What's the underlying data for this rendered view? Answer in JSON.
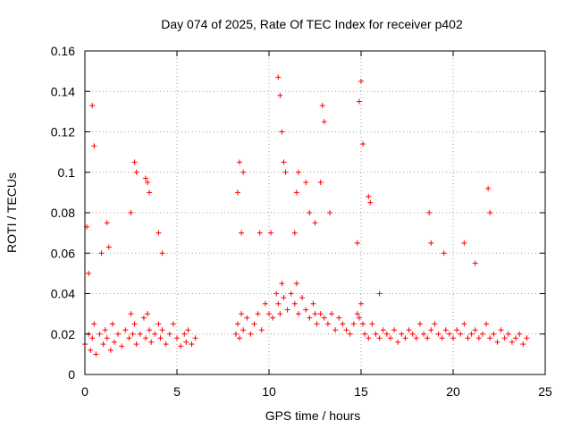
{
  "chart_data": {
    "type": "scatter",
    "title": "Day 074 of 2025, Rate Of TEC Index for receiver p402",
    "xlabel": "GPS time / hours",
    "ylabel": "ROTI / TECUs",
    "xlim": [
      0,
      25
    ],
    "ylim": [
      0,
      0.16
    ],
    "xticks": [
      0,
      5,
      10,
      15,
      20,
      25
    ],
    "xtick_labels": [
      "0",
      "5",
      "10",
      "15",
      "20",
      "25"
    ],
    "yticks": [
      0,
      0.02,
      0.04,
      0.06,
      0.08,
      0.1,
      0.12,
      0.14,
      0.16
    ],
    "ytick_labels": [
      "0",
      "0.02",
      "0.04",
      "0.06",
      "0.08",
      "0.1",
      "0.12",
      "0.14",
      "0.16"
    ],
    "grid": true,
    "marker": "+",
    "color": "#ff0000",
    "data_gaps_hours": [
      [
        6.1,
        8.1
      ]
    ],
    "series": [
      {
        "name": "ROTI",
        "x": [
          0.0,
          0.2,
          0.3,
          0.4,
          0.5,
          0.6,
          0.8,
          1.0,
          1.1,
          1.2,
          1.4,
          1.5,
          1.6,
          1.8,
          2.0,
          2.2,
          2.4,
          2.5,
          2.6,
          2.7,
          2.8,
          3.0,
          3.2,
          3.3,
          3.4,
          3.5,
          3.6,
          3.8,
          4.0,
          4.1,
          4.2,
          4.4,
          4.6,
          4.8,
          5.0,
          5.2,
          5.4,
          5.5,
          5.6,
          5.8,
          6.0,
          8.2,
          8.3,
          8.4,
          8.5,
          8.6,
          8.8,
          9.0,
          9.2,
          9.4,
          9.6,
          9.8,
          10.0,
          10.2,
          10.4,
          10.5,
          10.6,
          10.7,
          10.8,
          11.0,
          11.2,
          11.4,
          11.5,
          11.6,
          11.8,
          12.0,
          12.2,
          12.4,
          12.5,
          12.6,
          12.8,
          13.0,
          13.2,
          13.4,
          13.6,
          13.8,
          14.0,
          14.2,
          14.4,
          14.6,
          14.8,
          14.9,
          15.0,
          15.1,
          15.2,
          15.4,
          15.6,
          15.8,
          16.0,
          16.2,
          16.4,
          16.6,
          16.8,
          17.0,
          17.2,
          17.4,
          17.6,
          17.8,
          18.0,
          18.2,
          18.4,
          18.6,
          18.8,
          19.0,
          19.2,
          19.4,
          19.6,
          19.8,
          20.0,
          20.2,
          20.4,
          20.6,
          20.8,
          21.0,
          21.2,
          21.4,
          21.6,
          21.8,
          22.0,
          22.2,
          22.4,
          22.6,
          22.8,
          23.0,
          23.2,
          23.4,
          23.6,
          23.8,
          24.0,
          0.1,
          0.2,
          0.4,
          0.5,
          0.9,
          1.2,
          1.3,
          2.5,
          2.7,
          2.8,
          3.3,
          3.4,
          3.5,
          4.0,
          4.2,
          8.3,
          8.4,
          8.5,
          8.6,
          9.5,
          10.1,
          10.5,
          10.6,
          10.7,
          10.8,
          10.9,
          11.4,
          11.5,
          11.6,
          12.0,
          12.2,
          12.5,
          12.8,
          12.9,
          13.0,
          13.3,
          14.8,
          14.9,
          15.0,
          15.1,
          15.4,
          15.5,
          16.0,
          18.7,
          18.8,
          19.5,
          20.6,
          21.2,
          21.9,
          22.0
        ],
        "y": [
          0.015,
          0.02,
          0.012,
          0.018,
          0.025,
          0.01,
          0.02,
          0.015,
          0.022,
          0.018,
          0.012,
          0.025,
          0.016,
          0.02,
          0.014,
          0.022,
          0.018,
          0.03,
          0.02,
          0.025,
          0.015,
          0.02,
          0.028,
          0.018,
          0.03,
          0.022,
          0.016,
          0.02,
          0.025,
          0.018,
          0.022,
          0.015,
          0.02,
          0.025,
          0.018,
          0.014,
          0.02,
          0.016,
          0.022,
          0.015,
          0.018,
          0.02,
          0.025,
          0.018,
          0.03,
          0.022,
          0.028,
          0.02,
          0.025,
          0.03,
          0.022,
          0.035,
          0.03,
          0.028,
          0.04,
          0.035,
          0.03,
          0.045,
          0.038,
          0.032,
          0.04,
          0.035,
          0.045,
          0.03,
          0.038,
          0.032,
          0.028,
          0.035,
          0.03,
          0.025,
          0.03,
          0.028,
          0.025,
          0.03,
          0.022,
          0.028,
          0.025,
          0.022,
          0.02,
          0.025,
          0.03,
          0.028,
          0.035,
          0.025,
          0.02,
          0.018,
          0.025,
          0.02,
          0.018,
          0.022,
          0.02,
          0.018,
          0.022,
          0.016,
          0.02,
          0.018,
          0.022,
          0.02,
          0.018,
          0.025,
          0.02,
          0.018,
          0.022,
          0.025,
          0.02,
          0.018,
          0.022,
          0.02,
          0.018,
          0.022,
          0.02,
          0.025,
          0.018,
          0.02,
          0.022,
          0.018,
          0.02,
          0.025,
          0.018,
          0.02,
          0.016,
          0.022,
          0.018,
          0.02,
          0.016,
          0.018,
          0.02,
          0.015,
          0.018,
          0.073,
          0.05,
          0.133,
          0.113,
          0.06,
          0.075,
          0.063,
          0.08,
          0.105,
          0.1,
          0.097,
          0.095,
          0.09,
          0.07,
          0.06,
          0.09,
          0.105,
          0.07,
          0.1,
          0.07,
          0.07,
          0.147,
          0.138,
          0.12,
          0.105,
          0.1,
          0.07,
          0.09,
          0.1,
          0.095,
          0.08,
          0.075,
          0.095,
          0.133,
          0.125,
          0.08,
          0.065,
          0.135,
          0.145,
          0.114,
          0.088,
          0.085,
          0.04,
          0.08,
          0.065,
          0.06,
          0.065,
          0.055,
          0.092,
          0.08
        ]
      }
    ]
  }
}
